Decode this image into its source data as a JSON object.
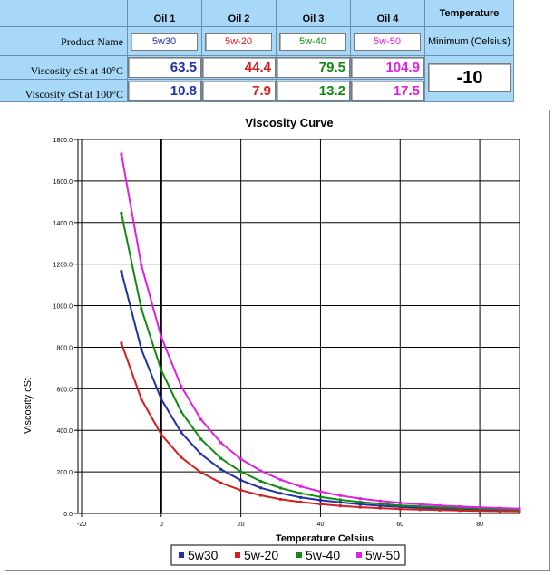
{
  "table": {
    "headers": {
      "oil1": "Oil 1",
      "oil2": "Oil 2",
      "oil3": "Oil 3",
      "oil4": "Oil 4",
      "temperature": "Temperature"
    },
    "row_labels": {
      "product_name": "Product Name",
      "visc40": "Viscosity cSt at 40°C",
      "visc100": "Viscosity cSt at 100°C"
    },
    "min_label": "Minimum (Celsius)",
    "min_value": "-10",
    "oils": [
      {
        "name": "5w30",
        "v40": "63.5",
        "v100": "10.8",
        "color": "#1f2fa8"
      },
      {
        "name": "5w-20",
        "v40": "44.4",
        "v100": "7.9",
        "color": "#d22020"
      },
      {
        "name": "5w-40",
        "v40": "79.5",
        "v100": "13.2",
        "color": "#128a12"
      },
      {
        "name": "5w-50",
        "v40": "104.9",
        "v100": "17.5",
        "color": "#e020e0"
      }
    ]
  },
  "chart_data": {
    "type": "line",
    "title": "Viscosity Curve",
    "xlabel": "Temperature Celsius",
    "ylabel": "Viscosity cSt",
    "xlim": [
      -20,
      90
    ],
    "ylim": [
      0,
      1800
    ],
    "x_ticks": [
      "-20",
      "0",
      "20",
      "40",
      "60",
      "80"
    ],
    "y_ticks": [
      "0.0",
      "200.0",
      "400.0",
      "600.0",
      "800.0",
      "1000.0",
      "1200.0",
      "1400.0",
      "1600.0",
      "1800.0"
    ],
    "grid": true,
    "legend": "bottom",
    "x": [
      -10,
      -5,
      0,
      5,
      10,
      15,
      20,
      25,
      30,
      35,
      40,
      45,
      50,
      55,
      60,
      65,
      70,
      75,
      80,
      85,
      90
    ],
    "series": [
      {
        "name": "5w30",
        "color": "#1f2fa8",
        "values": [
          1165,
          790,
          550,
          390,
          285,
          212,
          160,
          123,
          97,
          77,
          63.5,
          53,
          44,
          37,
          32,
          27.5,
          24,
          21,
          18.5,
          16.5,
          14.5
        ]
      },
      {
        "name": "5w-20",
        "color": "#d22020",
        "values": [
          820,
          550,
          380,
          270,
          197,
          147,
          112,
          87,
          68,
          55,
          44.4,
          36.5,
          30,
          25.5,
          21.5,
          18.5,
          16,
          14,
          12.3,
          11,
          9.8
        ]
      },
      {
        "name": "5w-40",
        "color": "#128a12",
        "values": [
          1445,
          985,
          690,
          490,
          357,
          265,
          201,
          155,
          122,
          97,
          79.5,
          65.5,
          55,
          46,
          39,
          34,
          29.5,
          26,
          23,
          20.5,
          18.3
        ]
      },
      {
        "name": "5w-50",
        "color": "#e020e0",
        "values": [
          1730,
          1195,
          850,
          612,
          452,
          340,
          262,
          205,
          162,
          130,
          104.9,
          86,
          71.5,
          60,
          51,
          44,
          38,
          33,
          29,
          26,
          23
        ]
      }
    ]
  }
}
